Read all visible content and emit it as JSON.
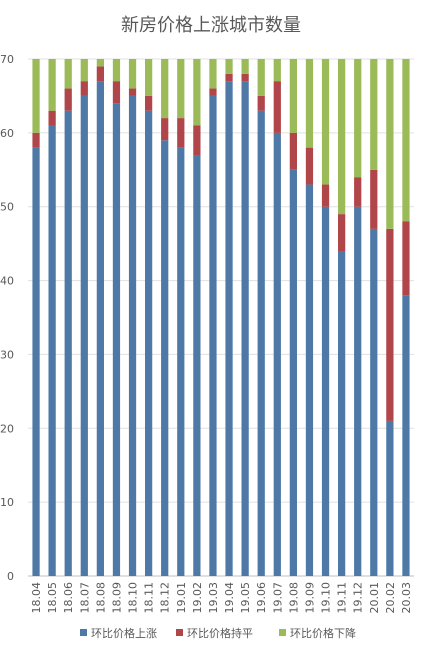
{
  "chart_data": {
    "type": "bar",
    "stacked": true,
    "title": "新房价格上涨城市数量",
    "categories": [
      "18.04",
      "18.05",
      "18.06",
      "18.07",
      "18.08",
      "18.09",
      "18.10",
      "18.11",
      "18.12",
      "19.01",
      "19.02",
      "19.03",
      "19.04",
      "19.05",
      "19.06",
      "19.07",
      "19.08",
      "19.09",
      "19.10",
      "19.11",
      "19.12",
      "20.01",
      "20.02",
      "20.03"
    ],
    "series": [
      {
        "name": "环比价格上涨",
        "color": "#4e79a7",
        "values": [
          58,
          61,
          63,
          65,
          67,
          64,
          65,
          63,
          59,
          58,
          57,
          65,
          67,
          67,
          63,
          60,
          55,
          53,
          50,
          44,
          50,
          47,
          21,
          38
        ]
      },
      {
        "name": "环比价格持平",
        "color": "#b0454a",
        "values": [
          2,
          2,
          3,
          2,
          2,
          3,
          1,
          2,
          3,
          4,
          4,
          1,
          1,
          1,
          2,
          7,
          5,
          5,
          3,
          5,
          4,
          8,
          26,
          10
        ]
      },
      {
        "name": "环比价格下降",
        "color": "#9bbb59",
        "values": [
          10,
          7,
          4,
          3,
          1,
          3,
          4,
          5,
          8,
          8,
          9,
          4,
          2,
          2,
          5,
          3,
          10,
          12,
          17,
          21,
          16,
          15,
          23,
          22
        ]
      }
    ],
    "ylim": [
      0,
      70
    ],
    "yticks": [
      0,
      10,
      20,
      30,
      40,
      50,
      60,
      70
    ],
    "grid": true,
    "legend": "bottom"
  }
}
